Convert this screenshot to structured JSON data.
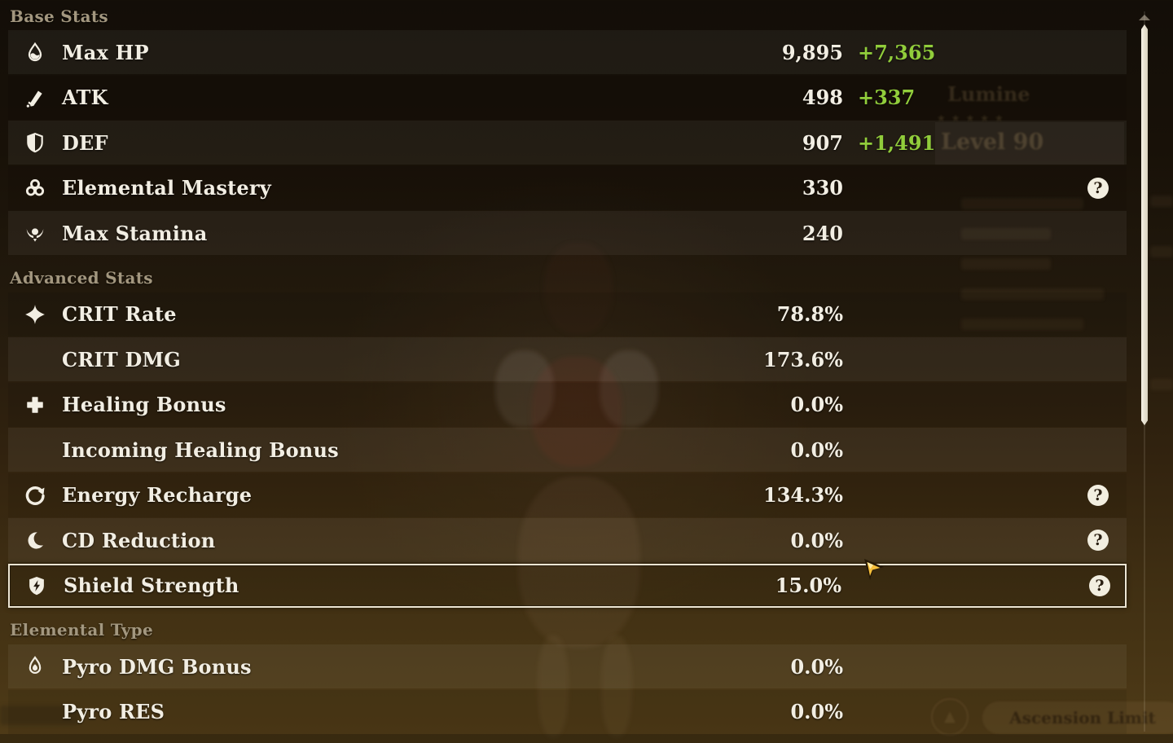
{
  "colors": {
    "text": "#f2eee3",
    "section_header": "#a3977f",
    "bonus_green": "#91cd3b",
    "highlight_border": "#ece5d3",
    "help_bg": "#f2eee0",
    "help_fg": "#2a1f12",
    "scrollbar": "#e9e4d6",
    "cursor_gold": "#f7bf3a"
  },
  "help_glyph": "?",
  "sections": [
    {
      "title": "Base Stats",
      "rows": [
        {
          "icon": "hp-drop-icon",
          "label": "Max HP",
          "value": "9,895",
          "bonus": "+7,365",
          "help": false,
          "highlight": false
        },
        {
          "icon": "atk-sword-icon",
          "label": "ATK",
          "value": "498",
          "bonus": "+337",
          "help": false,
          "highlight": false
        },
        {
          "icon": "def-shield-icon",
          "label": "DEF",
          "value": "907",
          "bonus": "+1,491",
          "help": false,
          "highlight": false
        },
        {
          "icon": "elemental-mastery-icon",
          "label": "Elemental Mastery",
          "value": "330",
          "bonus": null,
          "help": true,
          "highlight": false
        },
        {
          "icon": "stamina-icon",
          "label": "Max Stamina",
          "value": "240",
          "bonus": null,
          "help": false,
          "highlight": false
        }
      ]
    },
    {
      "title": "Advanced Stats",
      "rows": [
        {
          "icon": "crit-rate-icon",
          "label": "CRIT Rate",
          "value": "78.8%",
          "bonus": null,
          "help": false,
          "highlight": false
        },
        {
          "icon": null,
          "label": "CRIT DMG",
          "value": "173.6%",
          "bonus": null,
          "help": false,
          "highlight": false
        },
        {
          "icon": "healing-icon",
          "label": "Healing Bonus",
          "value": "0.0%",
          "bonus": null,
          "help": false,
          "highlight": false
        },
        {
          "icon": null,
          "label": "Incoming Healing Bonus",
          "value": "0.0%",
          "bonus": null,
          "help": false,
          "highlight": false
        },
        {
          "icon": "energy-recharge-icon",
          "label": "Energy Recharge",
          "value": "134.3%",
          "bonus": null,
          "help": true,
          "highlight": false
        },
        {
          "icon": "cd-reduction-icon",
          "label": "CD Reduction",
          "value": "0.0%",
          "bonus": null,
          "help": true,
          "highlight": false
        },
        {
          "icon": "shield-strength-icon",
          "label": "Shield Strength",
          "value": "15.0%",
          "bonus": null,
          "help": true,
          "highlight": true
        }
      ]
    },
    {
      "title": "Elemental Type",
      "rows": [
        {
          "icon": "pyro-icon",
          "label": "Pyro DMG Bonus",
          "value": "0.0%",
          "bonus": null,
          "help": false,
          "highlight": false
        },
        {
          "icon": null,
          "label": "Pyro RES",
          "value": "0.0%",
          "bonus": null,
          "help": false,
          "highlight": false
        }
      ]
    }
  ],
  "ghost_background": {
    "character_name": "Lumine",
    "rarity_stars": "★★★★★",
    "level_label": "Level 90",
    "ascension_button_label": "Ascension Limit"
  }
}
